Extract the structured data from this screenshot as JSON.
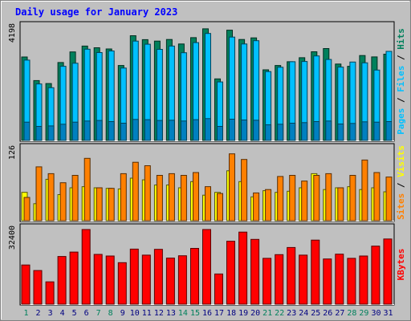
{
  "chart_data": {
    "type": "bar",
    "title": "Daily usage for January 2023",
    "categories": [
      "1",
      "2",
      "3",
      "4",
      "5",
      "6",
      "7",
      "8",
      "9",
      "10",
      "11",
      "12",
      "13",
      "14",
      "15",
      "16",
      "17",
      "18",
      "19",
      "20",
      "21",
      "22",
      "23",
      "24",
      "25",
      "26",
      "27",
      "28",
      "29",
      "30",
      "31"
    ],
    "weekend_days": [
      "1",
      "7",
      "8",
      "14",
      "15",
      "21",
      "22",
      "28",
      "29"
    ],
    "panels": [
      {
        "id": "top",
        "ymax": 4198,
        "ymax_label": "4198",
        "series": [
          {
            "name": "Hits",
            "color": "#00805c",
            "values": [
              3095,
              2220,
              2110,
              2890,
              3285,
              3500,
              3440,
              3395,
              2780,
              3885,
              3740,
              3685,
              3745,
              3580,
              3815,
              4140,
              2285,
              4090,
              3745,
              3805,
              2620,
              2780,
              2920,
              3070,
              3290,
              3410,
              2835,
              2750,
              3150,
              3100,
              3200
            ]
          },
          {
            "name": "Files",
            "color": "#00c0ff",
            "values": [
              2980,
              2095,
              1955,
              2750,
              2865,
              3385,
              3260,
              3320,
              2685,
              3685,
              3570,
              3380,
              3500,
              3255,
              3630,
              3970,
              2170,
              3835,
              3580,
              3700,
              2555,
              2715,
              2920,
              2930,
              3135,
              3005,
              2720,
              2910,
              2880,
              2610,
              3305
            ]
          },
          {
            "name": "Pages",
            "color": "#00c0ff",
            "values": [
              680,
              520,
              540,
              600,
              680,
              720,
              740,
              700,
              640,
              780,
              770,
              740,
              750,
              720,
              770,
              810,
              520,
              790,
              760,
              750,
              580,
              600,
              640,
              660,
              700,
              720,
              610,
              630,
              690,
              680,
              700
            ]
          }
        ]
      },
      {
        "id": "middle",
        "ymax": 126,
        "ymax_label": "126",
        "series": [
          {
            "name": "Visits",
            "color": "#ffff00",
            "values": [
              50,
              30,
              73,
              46,
              58,
              60,
              58,
              57,
              56,
              75,
              72,
              63,
              63,
              58,
              69,
              45,
              50,
              88,
              69,
              42,
              53,
              50,
              52,
              58,
              83,
              55,
              58,
              60,
              55,
              58,
              51
            ]
          },
          {
            "name": "Sites",
            "color": "#ff8000",
            "values": [
              41,
              95,
              83,
              67,
              80,
              110,
              58,
              57,
              83,
              103,
              97,
              80,
              83,
              80,
              85,
              60,
              48,
              118,
              108,
              49,
              55,
              78,
              80,
              70,
              80,
              83,
              58,
              80,
              107,
              85,
              77
            ]
          }
        ]
      },
      {
        "id": "bottom",
        "ymax": 32400,
        "ymax_label": "32400",
        "series": [
          {
            "name": "KBytes",
            "color": "#ff0000",
            "values": [
              17000,
              14600,
              9700,
              20700,
              22600,
              32400,
              21600,
              20900,
              18000,
              23900,
              21300,
              23800,
              20000,
              21000,
              24200,
              32400,
              13100,
              27300,
              31300,
              28100,
              19900,
              21500,
              24600,
              21300,
              27800,
              19600,
              21700,
              19900,
              20900,
              25200,
              28300
            ]
          }
        ]
      }
    ],
    "legend_right": {
      "top": [
        {
          "text": "Pages",
          "color": "#00c0ff"
        },
        {
          "text": " / ",
          "color": "#000000"
        },
        {
          "text": "Files",
          "color": "#00c0ff"
        },
        {
          "text": " / ",
          "color": "#000000"
        },
        {
          "text": "Hits",
          "color": "#00805c"
        }
      ],
      "middle": [
        {
          "text": "Sites",
          "color": "#ff8000"
        },
        {
          "text": " / ",
          "color": "#000000"
        },
        {
          "text": "Visits",
          "color": "#ffff00"
        }
      ],
      "bottom": [
        {
          "text": "KBytes",
          "color": "#ff0000"
        }
      ]
    }
  },
  "colors": {
    "background": "#c0c0c0",
    "title": "#0000ff",
    "weekday_label": "#000080",
    "weekend_label": "#00805c"
  }
}
